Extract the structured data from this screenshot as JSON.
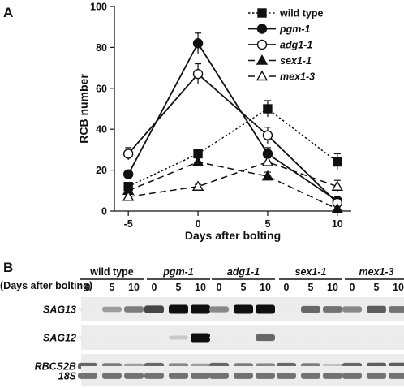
{
  "panel_a_letter": "A",
  "panel_b_letter": "B",
  "chart_data": {
    "type": "line",
    "title": "",
    "xlabel": "Days after bolting",
    "ylabel": "RCB number",
    "x": [
      -5,
      0,
      5,
      10
    ],
    "xticks": [
      "-5",
      "0",
      "5",
      "10"
    ],
    "yticks": [
      "0",
      "20",
      "40",
      "60",
      "80",
      "100"
    ],
    "xlim": [
      -6,
      11
    ],
    "ylim": [
      0,
      100
    ],
    "grid": false,
    "legend_position": "top-right",
    "series": [
      {
        "name": "wild type",
        "values": [
          12,
          28,
          50,
          24
        ],
        "errors": [
          2,
          2,
          4,
          4
        ],
        "marker": "square",
        "fill": "filled",
        "dash": "dotted"
      },
      {
        "name": "pgm-1",
        "values": [
          18,
          82,
          28,
          5
        ],
        "errors": [
          2,
          5,
          3,
          1
        ],
        "marker": "circle",
        "fill": "filled",
        "dash": "solid"
      },
      {
        "name": "adg1-1",
        "values": [
          28,
          67,
          37,
          4
        ],
        "errors": [
          3,
          5,
          4,
          1
        ],
        "marker": "circle",
        "fill": "open",
        "dash": "solid"
      },
      {
        "name": "sex1-1",
        "values": [
          10,
          24,
          17,
          1
        ],
        "errors": [
          1,
          2,
          2,
          1
        ],
        "marker": "triangle",
        "fill": "filled",
        "dash": "dashed"
      },
      {
        "name": "mex1-3",
        "values": [
          7,
          12,
          24,
          12
        ],
        "errors": [
          1,
          1,
          2,
          3
        ],
        "marker": "triangle",
        "fill": "open",
        "dash": "dashed"
      }
    ]
  },
  "gel": {
    "lane_header": "(Days after bolting)",
    "groups": [
      "wild type",
      "pgm-1",
      "adg1-1",
      "sex1-1",
      "mex1-3"
    ],
    "lanes": [
      "0",
      "5",
      "10"
    ],
    "rows": [
      "SAG13",
      "SAG12",
      "RBCS2B",
      "18S"
    ],
    "band_intensity": [
      [
        0.0,
        0.35,
        0.5,
        0.75,
        1.0,
        1.0,
        0.45,
        1.0,
        1.0,
        0.0,
        0.6,
        0.55,
        0.45,
        0.65,
        0.55
      ],
      [
        0.0,
        0.0,
        0.0,
        0.0,
        0.15,
        1.0,
        0.0,
        0.0,
        0.6,
        0.0,
        0.0,
        0.0,
        0.0,
        0.0,
        0.0
      ],
      [
        0.6,
        0.5,
        0.35,
        0.6,
        0.45,
        0.35,
        0.6,
        0.5,
        0.45,
        0.6,
        0.5,
        0.2,
        0.6,
        0.65,
        0.65
      ],
      [
        0.55,
        0.55,
        0.55,
        0.55,
        0.55,
        0.55,
        0.55,
        0.55,
        0.55,
        0.55,
        0.55,
        0.55,
        0.55,
        0.55,
        0.55
      ]
    ]
  }
}
